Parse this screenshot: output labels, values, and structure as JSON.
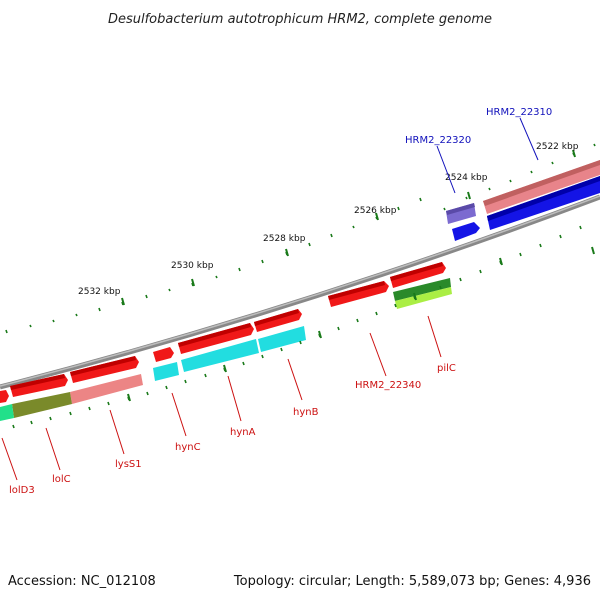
{
  "title": "Desulfobacterium autotrophicum HRM2, complete genome",
  "footer": {
    "accession": "Accession: NC_012108",
    "summary": "Topology: circular; Length: 5,589,073 bp; Genes: 4,936"
  },
  "colors": {
    "backbone": "#888888",
    "tick": "#1a7a1a",
    "label_red": "#cc1111",
    "label_blue": "#1111bb"
  },
  "ticks": [
    {
      "label": "2522 kbp"
    },
    {
      "label": "2524 kbp"
    },
    {
      "label": "2526 kbp"
    },
    {
      "label": "2528 kbp"
    },
    {
      "label": "2530 kbp"
    },
    {
      "label": "2532 kbp"
    }
  ],
  "genes": [
    {
      "name": "HRM2_22310",
      "color": "blue"
    },
    {
      "name": "HRM2_22320",
      "color": "blue"
    },
    {
      "name": "HRM2_22340",
      "color": "red"
    },
    {
      "name": "pilC",
      "color": "red"
    },
    {
      "name": "hynB",
      "color": "red"
    },
    {
      "name": "hynA",
      "color": "red"
    },
    {
      "name": "hynC",
      "color": "red"
    },
    {
      "name": "lysS1",
      "color": "red"
    },
    {
      "name": "lolC",
      "color": "red"
    },
    {
      "name": "lolD3",
      "color": "red"
    }
  ]
}
